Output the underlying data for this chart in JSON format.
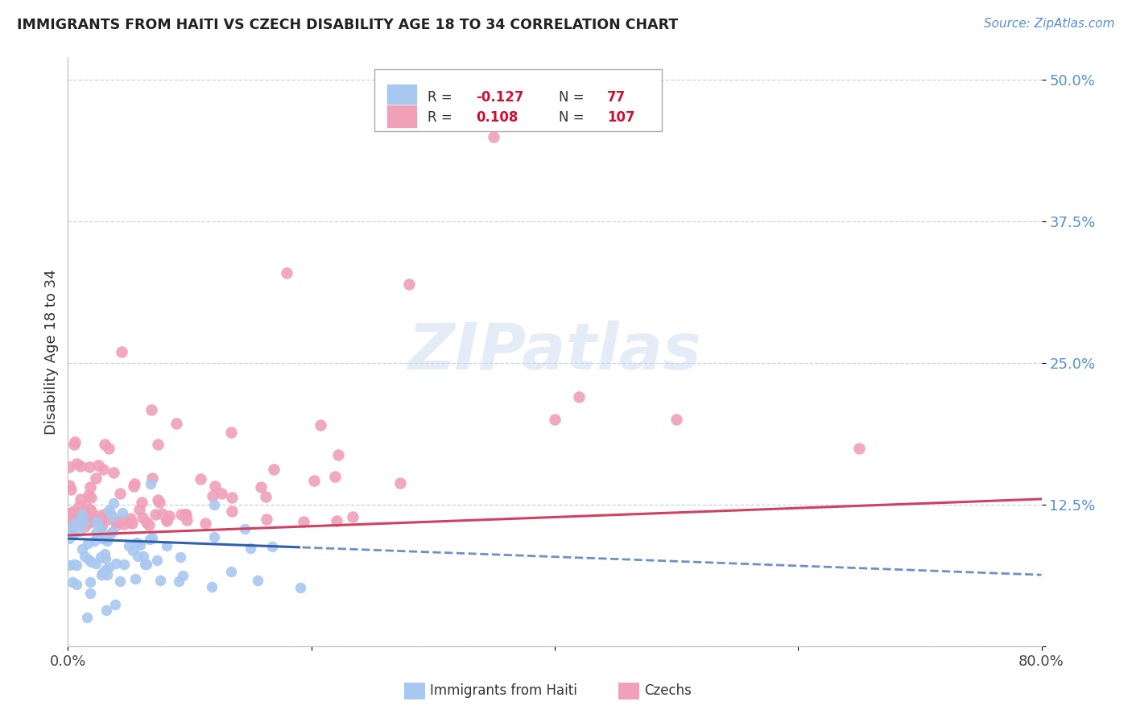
{
  "title": "IMMIGRANTS FROM HAITI VS CZECH DISABILITY AGE 18 TO 34 CORRELATION CHART",
  "source": "Source: ZipAtlas.com",
  "ylabel": "Disability Age 18 to 34",
  "xlim": [
    0.0,
    0.8
  ],
  "ylim": [
    0.0,
    0.52
  ],
  "yticks": [
    0.0,
    0.125,
    0.25,
    0.375,
    0.5
  ],
  "ytick_labels": [
    "",
    "12.5%",
    "25.0%",
    "37.5%",
    "50.0%"
  ],
  "xticks": [
    0.0,
    0.2,
    0.4,
    0.6,
    0.8
  ],
  "xtick_labels": [
    "0.0%",
    "",
    "",
    "",
    "80.0%"
  ],
  "haiti_R": -0.127,
  "haiti_N": 77,
  "czech_R": 0.108,
  "czech_N": 107,
  "haiti_color": "#a8c8f0",
  "czech_color": "#f0a0b8",
  "haiti_line_color": "#3060b0",
  "czech_line_color": "#d04060",
  "watermark": "ZIPatlas",
  "background_color": "#ffffff",
  "grid_color": "#c8d4e8",
  "title_color": "#222222",
  "source_color": "#5590cc",
  "ytick_color": "#5590cc",
  "legend_border_color": "#aaaaaa"
}
